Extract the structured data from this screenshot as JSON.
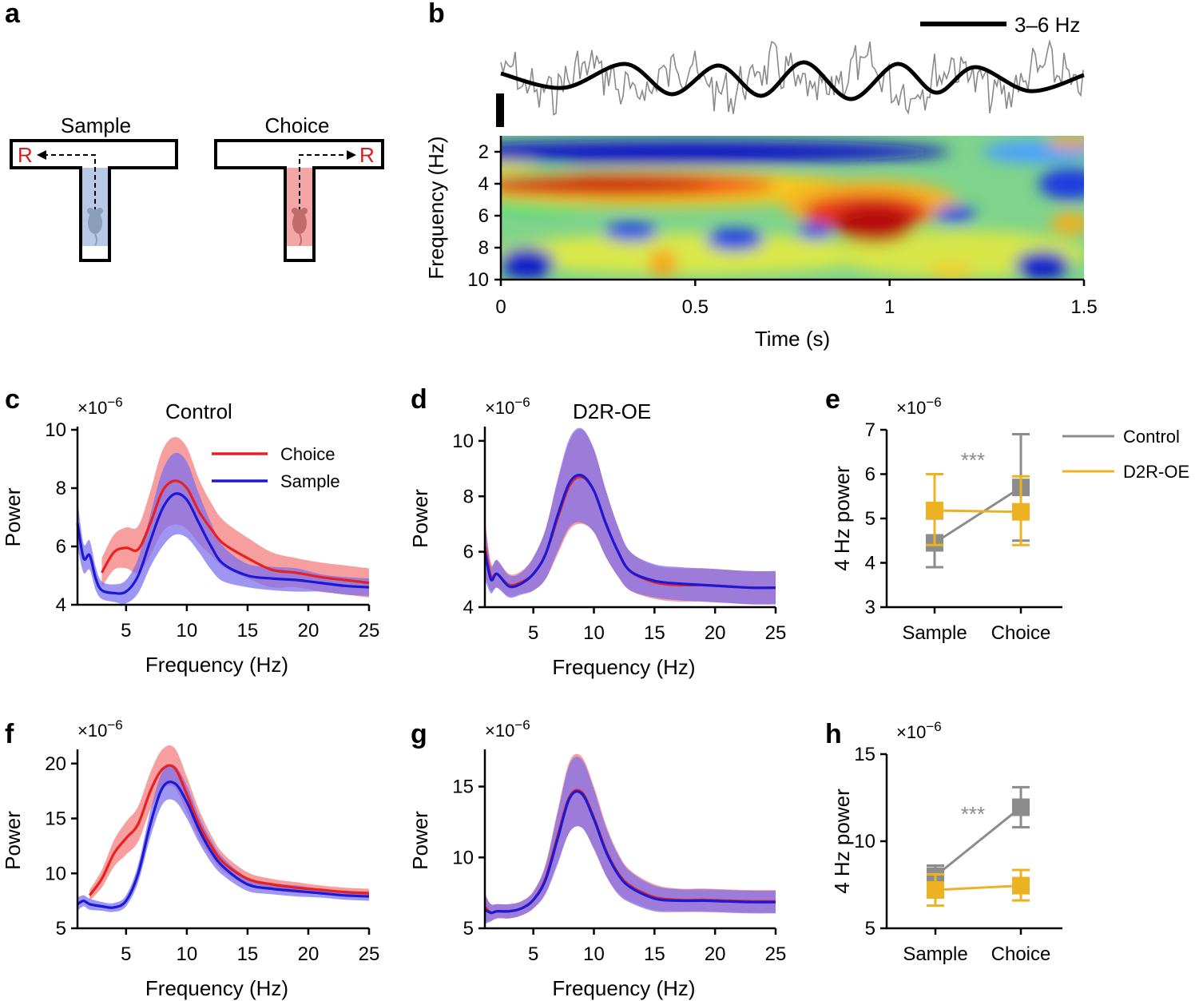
{
  "panel_labels": {
    "a": "a",
    "b": "b",
    "c": "c",
    "d": "d",
    "e": "e",
    "f": "f",
    "g": "g",
    "h": "h"
  },
  "colors": {
    "choice": "#e82020",
    "sample": "#1a1ad6",
    "choice_band": "#f26b6b",
    "sample_band": "#7a6df0",
    "control": "#8c8c8c",
    "d2r": "#ecb221",
    "raw_trace": "#8a8a8a",
    "reward": "#d01f1f",
    "sample_zone": "#b7c9e4",
    "choice_zone": "#f3a6a6"
  },
  "panel_a": {
    "sample_label": "Sample",
    "choice_label": "Choice",
    "reward_left": "R",
    "reward_right": "R",
    "icons": [
      "mouse-icon",
      "mouse-icon"
    ]
  },
  "panel_b": {
    "scalebar_label": "3–6 Hz",
    "xlabel": "Time (s)",
    "ylabel": "Frequency (Hz)",
    "xticks": [
      0,
      0.5,
      1,
      1.5
    ],
    "yticks": [
      2,
      4,
      6,
      8,
      10
    ],
    "x_range": [
      0,
      1.5
    ],
    "y_range": [
      1,
      10
    ],
    "filtered_peaks_s": [
      0.0,
      0.32,
      0.56,
      0.78,
      1.02,
      1.22,
      1.5
    ],
    "colormap": "jet",
    "high_power_regions": [
      {
        "t_from": 0.15,
        "t_to": 0.7,
        "f_from": 3,
        "f_to": 5,
        "level": "high"
      },
      {
        "t_from": 0.85,
        "t_to": 1.1,
        "f_from": 4,
        "f_to": 8,
        "level": "high"
      }
    ]
  },
  "chart_data": [
    {
      "id": "c",
      "type": "line",
      "title": "Control",
      "multiplier": "×10",
      "exponent": "−6",
      "xlabel": "Frequency (Hz)",
      "ylabel": "Power",
      "xlim": [
        1,
        25
      ],
      "ylim": [
        4,
        10
      ],
      "xticks": [
        5,
        10,
        15,
        20,
        25
      ],
      "yticks": [
        4,
        6,
        8,
        10
      ],
      "legend": [
        "Choice",
        "Sample"
      ],
      "legend_position": "top-right",
      "series": [
        {
          "name": "Choice",
          "x": [
            3,
            4,
            5,
            6,
            7,
            8,
            9,
            10,
            11,
            12,
            13,
            15,
            17,
            19,
            21,
            23,
            25
          ],
          "y": [
            5.1,
            5.8,
            5.95,
            5.9,
            6.8,
            7.9,
            8.25,
            8.0,
            7.2,
            6.6,
            6.1,
            5.6,
            5.2,
            5.1,
            4.95,
            4.85,
            4.75
          ],
          "band": [
            0.5,
            0.6,
            0.7,
            0.8,
            1.1,
            1.4,
            1.5,
            1.4,
            1.1,
            0.9,
            0.8,
            0.7,
            0.6,
            0.5,
            0.5,
            0.5,
            0.5
          ]
        },
        {
          "name": "Sample",
          "x": [
            1,
            1.5,
            2,
            2.5,
            3,
            4,
            5,
            6,
            7,
            8,
            9,
            10,
            11,
            12,
            13,
            15,
            17,
            19,
            21,
            23,
            25
          ],
          "y": [
            6.8,
            5.6,
            5.7,
            4.9,
            4.5,
            4.4,
            4.45,
            5.0,
            6.2,
            7.3,
            7.8,
            7.6,
            6.8,
            6.0,
            5.4,
            5.0,
            4.9,
            4.85,
            4.75,
            4.65,
            4.6
          ],
          "band": [
            0.8,
            0.5,
            0.5,
            0.4,
            0.3,
            0.3,
            0.4,
            0.6,
            0.9,
            1.3,
            1.4,
            1.3,
            1.0,
            0.8,
            0.6,
            0.4,
            0.4,
            0.4,
            0.3,
            0.3,
            0.3
          ]
        }
      ]
    },
    {
      "id": "d",
      "type": "line",
      "title": "D2R-OE",
      "multiplier": "×10",
      "exponent": "−6",
      "xlabel": "Frequency (Hz)",
      "ylabel": "Power",
      "xlim": [
        1,
        25
      ],
      "ylim": [
        4,
        10.4
      ],
      "xticks": [
        5,
        10,
        15,
        20,
        25
      ],
      "yticks": [
        4,
        6,
        8,
        10
      ],
      "series": [
        {
          "name": "Choice",
          "x": [
            1,
            1.5,
            2,
            3,
            4,
            5,
            6,
            7,
            8,
            9,
            10,
            11,
            12,
            13,
            15,
            17,
            19,
            21,
            23,
            25
          ],
          "y": [
            6.2,
            5.1,
            5.2,
            4.8,
            4.9,
            5.2,
            5.9,
            7.2,
            8.4,
            8.7,
            8.2,
            7.0,
            6.0,
            5.3,
            4.9,
            4.8,
            4.8,
            4.75,
            4.7,
            4.7
          ],
          "band": [
            1.0,
            0.5,
            0.5,
            0.4,
            0.4,
            0.6,
            0.9,
            1.3,
            1.6,
            1.7,
            1.5,
            1.2,
            0.9,
            0.7,
            0.6,
            0.6,
            0.6,
            0.6,
            0.6,
            0.6
          ]
        },
        {
          "name": "Sample",
          "x": [
            1,
            1.5,
            2,
            3,
            4,
            5,
            6,
            7,
            8,
            9,
            10,
            11,
            12,
            13,
            15,
            17,
            19,
            21,
            23,
            25
          ],
          "y": [
            6.0,
            5.0,
            5.2,
            4.75,
            4.85,
            5.2,
            5.9,
            7.3,
            8.5,
            8.75,
            8.2,
            7.0,
            6.0,
            5.3,
            4.95,
            4.85,
            4.8,
            4.75,
            4.7,
            4.7
          ],
          "band": [
            1.0,
            0.5,
            0.5,
            0.4,
            0.4,
            0.6,
            0.9,
            1.3,
            1.6,
            1.7,
            1.5,
            1.2,
            0.9,
            0.7,
            0.6,
            0.6,
            0.6,
            0.6,
            0.6,
            0.6
          ]
        }
      ]
    },
    {
      "id": "e",
      "type": "line",
      "multiplier": "×10",
      "exponent": "−6",
      "ylabel": "4 Hz power",
      "categories": [
        "Sample",
        "Choice"
      ],
      "ylim": [
        3,
        7
      ],
      "yticks": [
        3,
        4,
        5,
        6,
        7
      ],
      "significance": "***",
      "legend": [
        "Control",
        "D2R-OE"
      ],
      "legend_position": "top-right",
      "series": [
        {
          "name": "Control",
          "values": [
            4.45,
            5.7
          ],
          "err_low": [
            3.9,
            4.5
          ],
          "err_high": [
            5.0,
            6.9
          ]
        },
        {
          "name": "D2R-OE",
          "values": [
            5.18,
            5.15
          ],
          "err_low": [
            4.4,
            4.4
          ],
          "err_high": [
            6.0,
            5.95
          ]
        }
      ]
    },
    {
      "id": "f",
      "type": "line",
      "multiplier": "×10",
      "exponent": "−6",
      "xlabel": "Frequency (Hz)",
      "ylabel": "Power",
      "xlim": [
        1,
        25
      ],
      "ylim": [
        5,
        21
      ],
      "xticks": [
        5,
        10,
        15,
        20,
        25
      ],
      "yticks": [
        5,
        10,
        15,
        20
      ],
      "series": [
        {
          "name": "Choice",
          "x": [
            2,
            3,
            4,
            5,
            6,
            7,
            8,
            9,
            10,
            11,
            12,
            13,
            15,
            17,
            19,
            21,
            23,
            25
          ],
          "y": [
            8.0,
            9.5,
            11.8,
            13.2,
            14.5,
            17.5,
            19.5,
            19.6,
            17.2,
            14.5,
            12.5,
            11.0,
            9.5,
            9.0,
            8.7,
            8.5,
            8.3,
            8.2
          ],
          "band": [
            0.5,
            0.8,
            1.2,
            1.5,
            1.6,
            1.7,
            1.8,
            1.8,
            1.6,
            1.3,
            1.0,
            0.8,
            0.6,
            0.5,
            0.5,
            0.4,
            0.4,
            0.4
          ]
        },
        {
          "name": "Sample",
          "x": [
            1,
            1.5,
            2,
            3,
            4,
            5,
            6,
            7,
            8,
            9,
            10,
            11,
            12,
            13,
            15,
            17,
            19,
            21,
            23,
            25
          ],
          "y": [
            7.2,
            7.5,
            7.2,
            7.0,
            6.9,
            7.5,
            10.0,
            14.5,
            17.8,
            18.2,
            16.5,
            14.0,
            12.0,
            10.6,
            9.0,
            8.6,
            8.4,
            8.2,
            8.0,
            7.9
          ],
          "band": [
            0.6,
            0.5,
            0.5,
            0.4,
            0.4,
            0.5,
            0.8,
            1.2,
            1.5,
            1.6,
            1.5,
            1.2,
            1.0,
            0.8,
            0.6,
            0.5,
            0.5,
            0.4,
            0.4,
            0.4
          ]
        }
      ]
    },
    {
      "id": "g",
      "type": "line",
      "multiplier": "×10",
      "exponent": "−6",
      "xlabel": "Frequency (Hz)",
      "ylabel": "Power",
      "xlim": [
        1,
        25
      ],
      "ylim": [
        5,
        17.4
      ],
      "xticks": [
        5,
        10,
        15,
        20,
        25
      ],
      "yticks": [
        5,
        10,
        15
      ],
      "series": [
        {
          "name": "Choice",
          "x": [
            1,
            1.5,
            2,
            3,
            4,
            5,
            6,
            7,
            8,
            9,
            10,
            11,
            12,
            13,
            15,
            17,
            19,
            21,
            23,
            25
          ],
          "y": [
            6.5,
            6.1,
            6.2,
            6.2,
            6.4,
            7.0,
            8.5,
            11.5,
            14.3,
            14.6,
            12.8,
            10.5,
            8.9,
            8.0,
            7.2,
            7.0,
            7.0,
            6.95,
            6.9,
            6.9
          ],
          "band": [
            1.0,
            0.6,
            0.5,
            0.5,
            0.5,
            0.6,
            1.0,
            1.8,
            2.5,
            2.5,
            2.2,
            1.8,
            1.4,
            1.1,
            0.9,
            0.8,
            0.8,
            0.8,
            0.8,
            0.8
          ]
        },
        {
          "name": "Sample",
          "x": [
            1,
            1.5,
            2,
            3,
            4,
            5,
            6,
            7,
            8,
            9,
            10,
            11,
            12,
            13,
            15,
            17,
            19,
            21,
            23,
            25
          ],
          "y": [
            6.3,
            6.1,
            6.2,
            6.2,
            6.4,
            7.0,
            8.4,
            11.3,
            14.2,
            14.5,
            12.7,
            10.4,
            8.8,
            7.9,
            7.1,
            6.95,
            6.95,
            6.9,
            6.85,
            6.85
          ],
          "band": [
            1.0,
            0.6,
            0.5,
            0.5,
            0.5,
            0.6,
            1.0,
            1.8,
            2.4,
            2.4,
            2.1,
            1.7,
            1.4,
            1.1,
            0.9,
            0.8,
            0.8,
            0.8,
            0.8,
            0.8
          ]
        }
      ]
    },
    {
      "id": "h",
      "type": "line",
      "multiplier": "×10",
      "exponent": "−6",
      "ylabel": "4 Hz power",
      "categories": [
        "Sample",
        "Choice"
      ],
      "ylim": [
        5,
        15
      ],
      "yticks": [
        5,
        10,
        15
      ],
      "significance": "***",
      "series": [
        {
          "name": "Control",
          "values": [
            8.0,
            11.95
          ],
          "err_low": [
            7.4,
            10.8
          ],
          "err_high": [
            8.6,
            13.1
          ]
        },
        {
          "name": "D2R-OE",
          "values": [
            7.2,
            7.45
          ],
          "err_low": [
            6.3,
            6.6
          ],
          "err_high": [
            8.1,
            8.35
          ]
        }
      ]
    }
  ]
}
